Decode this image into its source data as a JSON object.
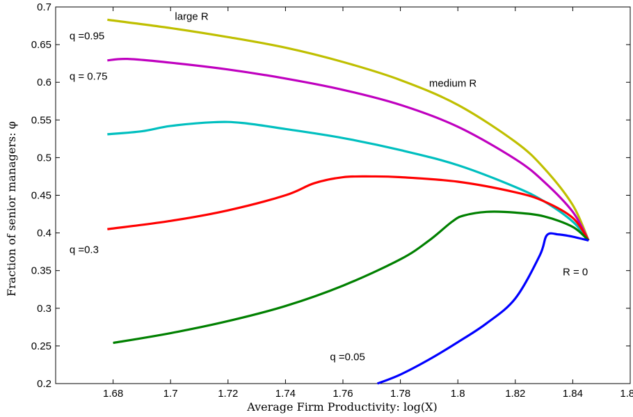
{
  "chart_data": {
    "type": "line",
    "xlabel": "Average Firm Productivity: log(X)",
    "ylabel": "Fraction of senior managers: φ",
    "xlim": [
      1.66,
      1.86
    ],
    "ylim": [
      0.2,
      0.7
    ],
    "xticks": [
      1.68,
      1.7,
      1.72,
      1.74,
      1.76,
      1.78,
      1.8,
      1.82,
      1.84,
      1.86
    ],
    "xtick_labels": [
      "1.68",
      "1.7",
      "1.72",
      "1.74",
      "1.76",
      "1.78",
      "1.8",
      "1.82",
      "1.84",
      "1.86"
    ],
    "yticks": [
      0.2,
      0.25,
      0.3,
      0.35,
      0.4,
      0.45,
      0.5,
      0.55,
      0.6,
      0.65,
      0.7
    ],
    "ytick_labels": [
      "0.2",
      "0.25",
      "0.3",
      "0.35",
      "0.4",
      "0.45",
      "0.5",
      "0.55",
      "0.6",
      "0.65",
      "0.7"
    ],
    "grid": false,
    "series": [
      {
        "color": "#bfbf00",
        "x": [
          1.678,
          1.7,
          1.72,
          1.74,
          1.76,
          1.78,
          1.8,
          1.82,
          1.83,
          1.84,
          1.8455
        ],
        "y": [
          0.683,
          0.672,
          0.66,
          0.646,
          0.627,
          0.603,
          0.57,
          0.521,
          0.486,
          0.437,
          0.39
        ]
      },
      {
        "color": "#bf00bf",
        "x": [
          1.678,
          1.685,
          1.7,
          1.72,
          1.74,
          1.76,
          1.78,
          1.8,
          1.82,
          1.83,
          1.84,
          1.8455
        ],
        "y": [
          0.629,
          0.631,
          0.626,
          0.617,
          0.605,
          0.59,
          0.57,
          0.541,
          0.498,
          0.468,
          0.428,
          0.39
        ]
      },
      {
        "color": "#00bfbf",
        "x": [
          1.678,
          1.69,
          1.7,
          1.715,
          1.725,
          1.74,
          1.76,
          1.78,
          1.8,
          1.82,
          1.83,
          1.84,
          1.8455
        ],
        "y": [
          0.531,
          0.535,
          0.542,
          0.547,
          0.546,
          0.538,
          0.526,
          0.51,
          0.49,
          0.461,
          0.442,
          0.415,
          0.39
        ]
      },
      {
        "color": "#ff0000",
        "x": [
          1.678,
          1.7,
          1.72,
          1.74,
          1.75,
          1.76,
          1.77,
          1.78,
          1.8,
          1.82,
          1.83,
          1.84,
          1.8455
        ],
        "y": [
          0.405,
          0.416,
          0.43,
          0.45,
          0.466,
          0.474,
          0.475,
          0.474,
          0.468,
          0.454,
          0.442,
          0.42,
          0.39
        ]
      },
      {
        "color": "#008000",
        "x": [
          1.68,
          1.7,
          1.72,
          1.74,
          1.76,
          1.78,
          1.79,
          1.798,
          1.802,
          1.81,
          1.82,
          1.83,
          1.84,
          1.8455
        ],
        "y": [
          0.254,
          0.267,
          0.283,
          0.303,
          0.33,
          0.365,
          0.39,
          0.415,
          0.423,
          0.428,
          0.427,
          0.422,
          0.408,
          0.39
        ]
      },
      {
        "color": "#0000ff",
        "x": [
          1.772,
          1.78,
          1.79,
          1.8,
          1.81,
          1.82,
          1.8285,
          1.831,
          1.835,
          1.84,
          1.8455
        ],
        "y": [
          0.2,
          0.212,
          0.232,
          0.255,
          0.28,
          0.313,
          0.37,
          0.397,
          0.398,
          0.395,
          0.39
        ]
      }
    ],
    "annotations": [
      {
        "text": "large  R",
        "x": 1.7015,
        "y": 0.683
      },
      {
        "text": "q =0.95",
        "x": 1.6648,
        "y": 0.657
      },
      {
        "text": "q = 0.75",
        "x": 1.6648,
        "y": 0.6035
      },
      {
        "text": "medium  R",
        "x": 1.79,
        "y": 0.594
      },
      {
        "text": "q =0.3",
        "x": 1.6648,
        "y": 0.3735
      },
      {
        "text": "R  = 0",
        "x": 1.8365,
        "y": 0.3435
      },
      {
        "text": "q =0.05",
        "x": 1.7555,
        "y": 0.231
      }
    ]
  }
}
